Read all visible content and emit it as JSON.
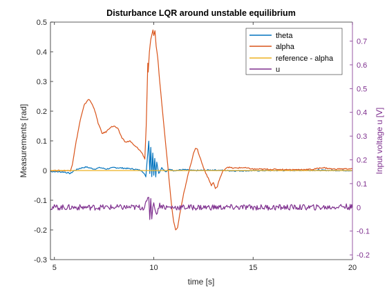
{
  "chart_data": {
    "type": "line",
    "title": "Disturbance LQR around unstable equilibrium",
    "xlabel": "time [s]",
    "ylabel_left": "Measurements [rad]",
    "ylabel_right": "Input voltage u [V]",
    "xlim": [
      4.8,
      20
    ],
    "ylim_left": [
      -0.3,
      0.5
    ],
    "ylim_right": [
      -0.22,
      0.78
    ],
    "x_ticks": [
      "5",
      "10",
      "15",
      "20"
    ],
    "y_ticks_left": [
      "-0.3",
      "-0.2",
      "-0.1",
      "0",
      "0.1",
      "0.2",
      "0.3",
      "0.4",
      "0.5"
    ],
    "y_ticks_right": [
      "-0.2",
      "-0.1",
      "0",
      "0.1",
      "0.2",
      "0.3",
      "0.4",
      "0.5",
      "0.6",
      "0.7"
    ],
    "legend_position": "top-right",
    "grid": false,
    "series": [
      {
        "name": "theta",
        "axis": "left",
        "color": "#0072BD",
        "points": [
          [
            4.8,
            -0.003
          ],
          [
            5.5,
            -0.005
          ],
          [
            5.8,
            -0.01
          ],
          [
            6.0,
            0.0
          ],
          [
            6.3,
            0.008
          ],
          [
            6.6,
            0.012
          ],
          [
            7.0,
            0.005
          ],
          [
            7.3,
            0.01
          ],
          [
            7.6,
            0.005
          ],
          [
            8.0,
            0.01
          ],
          [
            8.5,
            0.008
          ],
          [
            9.0,
            0.005
          ],
          [
            9.4,
            0.0
          ],
          [
            9.6,
            -0.02
          ],
          [
            9.7,
            0.06
          ],
          [
            9.75,
            0.1
          ],
          [
            9.8,
            -0.01
          ],
          [
            9.85,
            0.08
          ],
          [
            9.9,
            -0.02
          ],
          [
            9.95,
            0.06
          ],
          [
            10.0,
            -0.015
          ],
          [
            10.05,
            0.04
          ],
          [
            10.1,
            -0.02
          ],
          [
            10.15,
            0.03
          ],
          [
            10.25,
            -0.01
          ],
          [
            10.4,
            0.01
          ],
          [
            10.6,
            -0.005
          ],
          [
            10.8,
            0.005
          ],
          [
            11.0,
            0.0
          ],
          [
            11.5,
            0.003
          ],
          [
            12.0,
            0.0
          ],
          [
            13.0,
            0.002
          ],
          [
            14.0,
            -0.001
          ],
          [
            16.0,
            0.0
          ],
          [
            18.0,
            0.001
          ],
          [
            20.0,
            0.0
          ]
        ]
      },
      {
        "name": "alpha",
        "axis": "left",
        "color": "#D95319",
        "points": [
          [
            4.8,
            0.0
          ],
          [
            5.5,
            0.0
          ],
          [
            5.8,
            0.0
          ],
          [
            5.9,
            0.02
          ],
          [
            6.1,
            0.1
          ],
          [
            6.3,
            0.17
          ],
          [
            6.5,
            0.22
          ],
          [
            6.7,
            0.24
          ],
          [
            6.8,
            0.235
          ],
          [
            7.0,
            0.21
          ],
          [
            7.2,
            0.16
          ],
          [
            7.4,
            0.125
          ],
          [
            7.6,
            0.13
          ],
          [
            7.8,
            0.145
          ],
          [
            8.0,
            0.15
          ],
          [
            8.2,
            0.14
          ],
          [
            8.4,
            0.11
          ],
          [
            8.6,
            0.095
          ],
          [
            8.8,
            0.1
          ],
          [
            9.0,
            0.085
          ],
          [
            9.2,
            0.075
          ],
          [
            9.4,
            0.06
          ],
          [
            9.55,
            0.04
          ],
          [
            9.62,
            0.15
          ],
          [
            9.7,
            0.36
          ],
          [
            9.72,
            0.33
          ],
          [
            9.78,
            0.4
          ],
          [
            9.85,
            0.44
          ],
          [
            9.92,
            0.46
          ],
          [
            9.96,
            0.475
          ],
          [
            10.0,
            0.455
          ],
          [
            10.06,
            0.47
          ],
          [
            10.12,
            0.42
          ],
          [
            10.2,
            0.38
          ],
          [
            10.3,
            0.3
          ],
          [
            10.4,
            0.23
          ],
          [
            10.5,
            0.16
          ],
          [
            10.6,
            0.09
          ],
          [
            10.7,
            0.02
          ],
          [
            10.8,
            -0.05
          ],
          [
            10.9,
            -0.12
          ],
          [
            11.0,
            -0.17
          ],
          [
            11.1,
            -0.2
          ],
          [
            11.2,
            -0.19
          ],
          [
            11.3,
            -0.15
          ],
          [
            11.5,
            -0.08
          ],
          [
            11.7,
            -0.02
          ],
          [
            11.9,
            0.03
          ],
          [
            12.0,
            0.06
          ],
          [
            12.1,
            0.075
          ],
          [
            12.2,
            0.07
          ],
          [
            12.35,
            0.04
          ],
          [
            12.5,
            0.01
          ],
          [
            12.7,
            -0.02
          ],
          [
            12.9,
            -0.05
          ],
          [
            13.0,
            -0.04
          ],
          [
            13.1,
            -0.06
          ],
          [
            13.2,
            -0.055
          ],
          [
            13.3,
            -0.03
          ],
          [
            13.5,
            0.0
          ],
          [
            13.7,
            0.012
          ],
          [
            14.0,
            0.008
          ],
          [
            14.5,
            0.01
          ],
          [
            15.0,
            0.005
          ],
          [
            16.0,
            0.004
          ],
          [
            17.0,
            0.003
          ],
          [
            18.0,
            0.004
          ],
          [
            18.5,
            0.01
          ],
          [
            19.0,
            0.005
          ],
          [
            20.0,
            0.006
          ]
        ]
      },
      {
        "name": "reference - alpha",
        "axis": "left",
        "color": "#EDB120",
        "points": [
          [
            4.8,
            0.0
          ],
          [
            20.0,
            0.0
          ]
        ]
      },
      {
        "name": "u",
        "axis": "right",
        "color": "#7E2F8E",
        "points": [
          [
            4.8,
            0.0
          ],
          [
            5.5,
            0.0
          ],
          [
            6.0,
            0.0
          ],
          [
            7.0,
            0.0
          ],
          [
            8.0,
            0.0
          ],
          [
            9.0,
            0.0
          ],
          [
            9.5,
            0.0
          ],
          [
            9.65,
            0.02
          ],
          [
            9.75,
            0.05
          ],
          [
            9.8,
            -0.05
          ],
          [
            9.85,
            0.04
          ],
          [
            9.9,
            -0.04
          ],
          [
            10.0,
            0.03
          ],
          [
            10.1,
            -0.03
          ],
          [
            10.3,
            0.01
          ],
          [
            10.6,
            0.0
          ],
          [
            11.0,
            0.0
          ],
          [
            12.0,
            0.0
          ],
          [
            13.0,
            0.0
          ],
          [
            14.0,
            0.0
          ],
          [
            15.0,
            0.0
          ],
          [
            16.0,
            0.0
          ],
          [
            17.0,
            0.0
          ],
          [
            18.0,
            0.0
          ],
          [
            18.8,
            0.0
          ],
          [
            19.5,
            0.005
          ],
          [
            20.0,
            0.0
          ]
        ]
      }
    ]
  }
}
